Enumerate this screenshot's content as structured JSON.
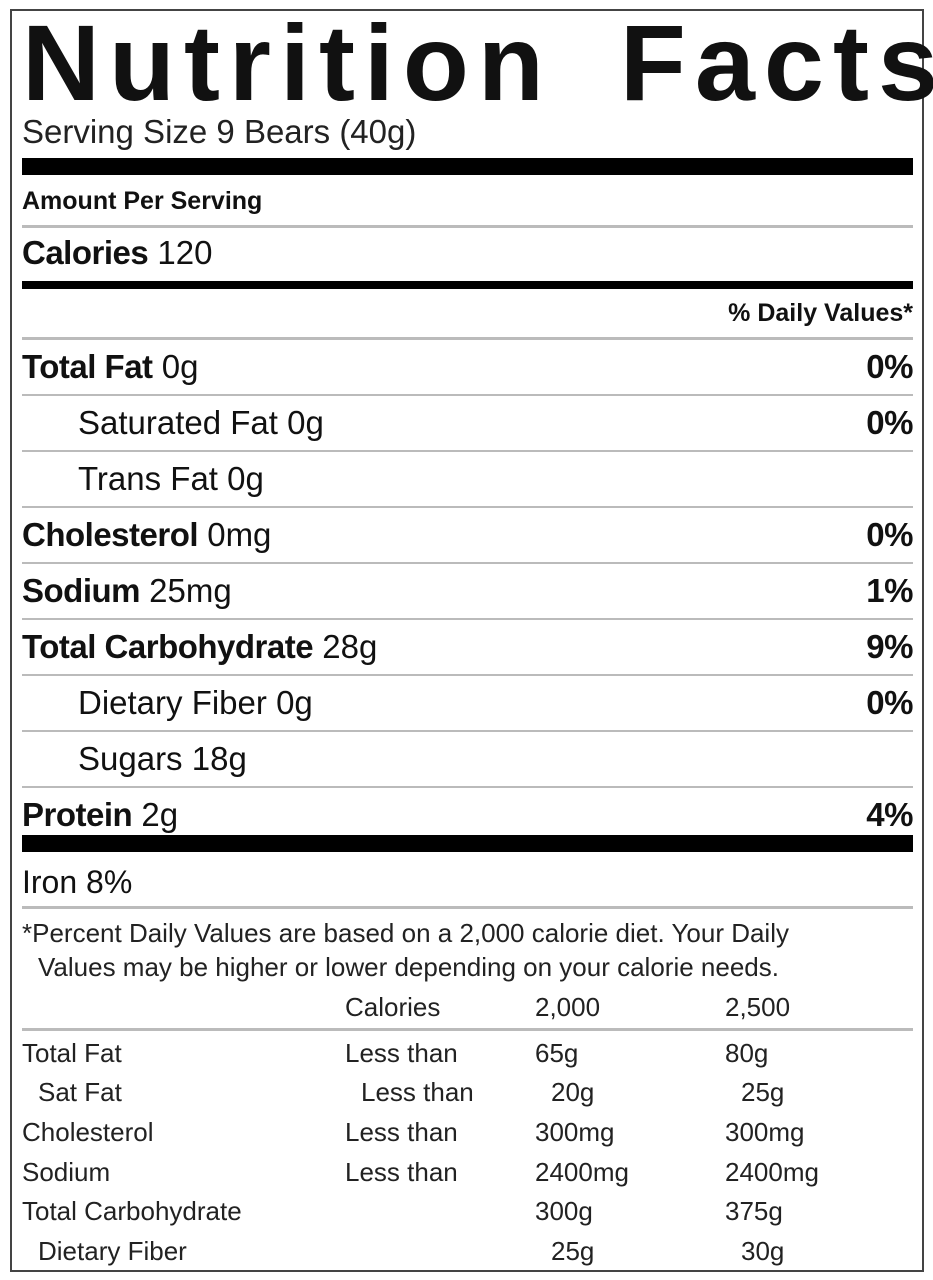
{
  "title": "Nutrition Facts",
  "serving_size": "Serving Size 9 Bears (40g)",
  "amount_per_serving": "Amount Per Serving",
  "calories": {
    "label": "Calories",
    "value": "120"
  },
  "daily_values_header": "% Daily Values*",
  "nutrients": [
    {
      "label": "Total Fat",
      "amount": "0g",
      "dv": "0%",
      "bold": true
    },
    {
      "label": "Saturated Fat",
      "amount": "0g",
      "dv": "0%",
      "bold": false
    },
    {
      "label": "Trans Fat",
      "amount": "0g",
      "dv": "",
      "bold": false
    },
    {
      "label": "Cholesterol",
      "amount": "0mg",
      "dv": "0%",
      "bold": true
    },
    {
      "label": "Sodium",
      "amount": "25mg",
      "dv": "1%",
      "bold": true
    },
    {
      "label": "Total Carbohydrate",
      "amount": "28g",
      "dv": "9%",
      "bold": true
    },
    {
      "label": "Dietary Fiber",
      "amount": "0g",
      "dv": "0%",
      "bold": false
    },
    {
      "label": "Sugars",
      "amount": "18g",
      "dv": "",
      "bold": false
    },
    {
      "label": "Protein",
      "amount": "2g",
      "dv": "4%",
      "bold": true
    }
  ],
  "iron": "Iron 8%",
  "footnote_line1": "*Percent Daily Values are based on a 2,000 calorie diet. Your Daily",
  "footnote_line2": "Values may be higher or lower depending on your calorie needs.",
  "table": {
    "header": [
      "",
      "Calories",
      "2,000",
      "2,500"
    ],
    "rows": [
      [
        "Total Fat",
        "Less than",
        "65g",
        "80g"
      ],
      [
        "Sat Fat",
        "Less than",
        "20g",
        "25g"
      ],
      [
        "Cholesterol",
        "Less than",
        "300mg",
        "300mg"
      ],
      [
        "Sodium",
        "Less than",
        "2400mg",
        "2400mg"
      ],
      [
        "Total Carbohydrate",
        "",
        "300g",
        "375g"
      ],
      [
        "Dietary Fiber",
        "",
        "25g",
        "30g"
      ]
    ]
  }
}
